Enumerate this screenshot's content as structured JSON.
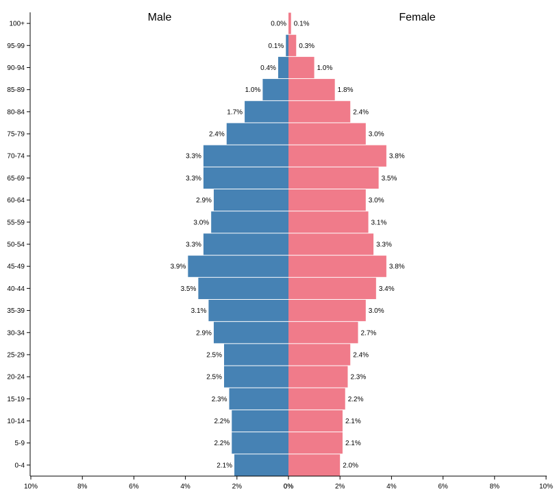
{
  "chart_data": {
    "type": "bar",
    "orientation": "horizontal-pyramid",
    "titles": {
      "left": "Male",
      "right": "Female"
    },
    "categories": [
      "0-4",
      "5-9",
      "10-14",
      "15-19",
      "20-24",
      "25-29",
      "30-34",
      "35-39",
      "40-44",
      "45-49",
      "50-54",
      "55-59",
      "60-64",
      "65-69",
      "70-74",
      "75-79",
      "80-84",
      "85-89",
      "90-94",
      "95-99",
      "100+"
    ],
    "series": [
      {
        "name": "Male",
        "color": "#4682b4",
        "side": "left",
        "values": [
          2.1,
          2.2,
          2.2,
          2.3,
          2.5,
          2.5,
          2.9,
          3.1,
          3.5,
          3.9,
          3.3,
          3.0,
          2.9,
          3.3,
          3.3,
          2.4,
          1.7,
          1.0,
          0.4,
          0.1,
          0.0
        ],
        "labels": [
          "2.1%",
          "2.2%",
          "2.2%",
          "2.3%",
          "2.5%",
          "2.5%",
          "2.9%",
          "3.1%",
          "3.5%",
          "3.9%",
          "3.3%",
          "3.0%",
          "2.9%",
          "3.3%",
          "3.3%",
          "2.4%",
          "1.7%",
          "1.0%",
          "0.4%",
          "0.1%",
          "0.0%"
        ]
      },
      {
        "name": "Female",
        "color": "#f07b8a",
        "side": "right",
        "values": [
          2.0,
          2.1,
          2.1,
          2.2,
          2.3,
          2.4,
          2.7,
          3.0,
          3.4,
          3.8,
          3.3,
          3.1,
          3.0,
          3.5,
          3.8,
          3.0,
          2.4,
          1.8,
          1.0,
          0.3,
          0.1
        ],
        "labels": [
          "2.0%",
          "2.1%",
          "2.1%",
          "2.2%",
          "2.3%",
          "2.4%",
          "2.7%",
          "3.0%",
          "3.4%",
          "3.8%",
          "3.3%",
          "3.1%",
          "3.0%",
          "3.5%",
          "3.8%",
          "3.0%",
          "2.4%",
          "1.8%",
          "1.0%",
          "0.3%",
          "0.1%"
        ]
      }
    ],
    "x_axis": {
      "left_ticks": [
        10,
        8,
        6,
        4,
        2,
        0
      ],
      "left_tick_labels": [
        "10%",
        "8%",
        "6%",
        "4%",
        "2%",
        "0%"
      ],
      "right_ticks": [
        0,
        2,
        4,
        6,
        8,
        10
      ],
      "right_tick_labels": [
        "0%",
        "2%",
        "4%",
        "6%",
        "8%",
        "10%"
      ],
      "range": [
        0,
        10
      ]
    }
  }
}
